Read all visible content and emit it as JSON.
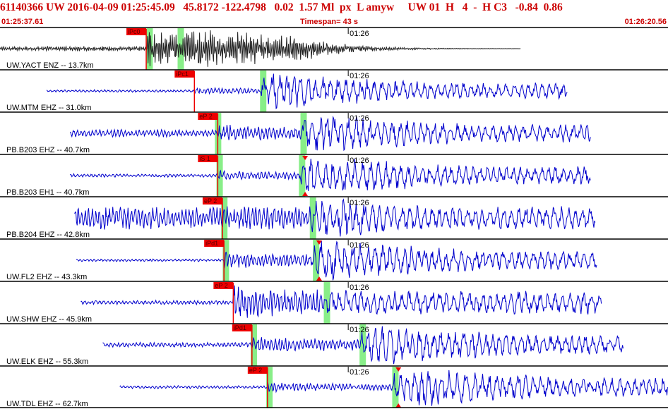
{
  "header": {
    "event_line": "61140366 UW 2016-04-09 01:25:45.09   45.8172 -122.4798   0.02  1.57 Ml  px  L amyw     UW 01  H   4  -  H C3   -0.84  0.86",
    "start_time": "01:25:37.61",
    "timespan": "Timespan=  43 s",
    "end_time": "01:26:20.56"
  },
  "time_tick_label": "01:26",
  "colors": {
    "header_text": "#cc0000",
    "waveform_blue": "#0000cc",
    "waveform_black": "#222222",
    "pick_box": "#ee0000",
    "pick_line": "#ee0000",
    "window_shade": "#88ee88",
    "separator": "#000000"
  },
  "traces": [
    {
      "label": "UW.YACT ENZ -- 13.7km",
      "pick": "iPc0",
      "color": "black",
      "start_s": 0.0,
      "end_s": 33.5,
      "p_s": 9.4,
      "s_s": 11.5,
      "p_window_s": 9.6,
      "s_window_s": 11.6,
      "p_amp": 0.95,
      "s_amp": 1.0,
      "noise": 0.12,
      "triangles": false
    },
    {
      "label": "UW.MTM EHZ -- 31.0km",
      "pick": "iPc1",
      "color": "blue",
      "start_s": 3.0,
      "end_s": 36.5,
      "p_s": 12.5,
      "s_s": 16.8,
      "p_window_s": null,
      "s_window_s": 16.9,
      "p_amp": 0.18,
      "s_amp": 0.85,
      "noise": 0.06,
      "triangles": false
    },
    {
      "label": "PB.B203 EHZ -- 40.7km",
      "pick": "eP 2",
      "color": "blue",
      "start_s": 4.5,
      "end_s": 38.0,
      "p_s": 14.0,
      "s_s": 19.4,
      "p_window_s": 14.0,
      "s_window_s": 19.5,
      "p_amp": 0.45,
      "s_amp": 0.95,
      "noise": 0.18,
      "triangles": false
    },
    {
      "label": "PB.B203 EH1 -- 40.7km",
      "pick": "iS 1",
      "color": "blue",
      "start_s": 4.5,
      "end_s": 38.0,
      "p_s": 14.0,
      "s_s": 19.3,
      "p_window_s": 14.1,
      "s_window_s": 19.4,
      "p_amp": 0.25,
      "s_amp": 0.95,
      "noise": 0.08,
      "triangles": true
    },
    {
      "label": "PB.B204 EHZ -- 42.8km",
      "pick": "eP 2",
      "color": "blue",
      "start_s": 4.8,
      "end_s": 38.3,
      "p_s": 14.3,
      "s_s": 20.0,
      "p_window_s": 14.4,
      "s_window_s": 20.1,
      "p_amp": 0.6,
      "s_amp": 0.95,
      "noise": 0.55,
      "triangles": false
    },
    {
      "label": "UW.FL2 EHZ -- 43.3km",
      "pick": "iPd1",
      "color": "blue",
      "start_s": 4.9,
      "end_s": 38.4,
      "p_s": 14.4,
      "s_s": 20.2,
      "p_window_s": 14.5,
      "s_window_s": 20.3,
      "p_amp": 0.45,
      "s_amp": 1.0,
      "noise": 0.06,
      "triangles": true
    },
    {
      "label": "UW.SHW EHZ -- 45.9km",
      "pick": "eP 2",
      "color": "blue",
      "start_s": 5.2,
      "end_s": 38.7,
      "p_s": 15.0,
      "s_s": 20.9,
      "p_window_s": null,
      "s_window_s": 21.0,
      "p_amp": 0.95,
      "s_amp": 0.7,
      "noise": 0.1,
      "triangles": false
    },
    {
      "label": "UW.ELK EHZ -- 55.3km",
      "pick": "iPd1",
      "color": "blue",
      "start_s": 6.6,
      "end_s": 40.1,
      "p_s": 16.2,
      "s_s": 23.2,
      "p_window_s": 16.3,
      "s_window_s": 23.3,
      "p_amp": 0.45,
      "s_amp": 1.0,
      "noise": 0.12,
      "triangles": false
    },
    {
      "label": "UW.TDL EHZ -- 62.7km",
      "pick": "eP 2",
      "color": "blue",
      "start_s": 7.7,
      "end_s": 42.95,
      "p_s": 17.2,
      "s_s": 25.3,
      "p_window_s": 17.3,
      "s_window_s": 25.4,
      "p_amp": 0.25,
      "s_amp": 1.0,
      "noise": 0.07,
      "triangles": true
    }
  ],
  "time_axis": {
    "start": "01:25:37.61",
    "tick_s": 22.39,
    "span_s": 42.95
  }
}
